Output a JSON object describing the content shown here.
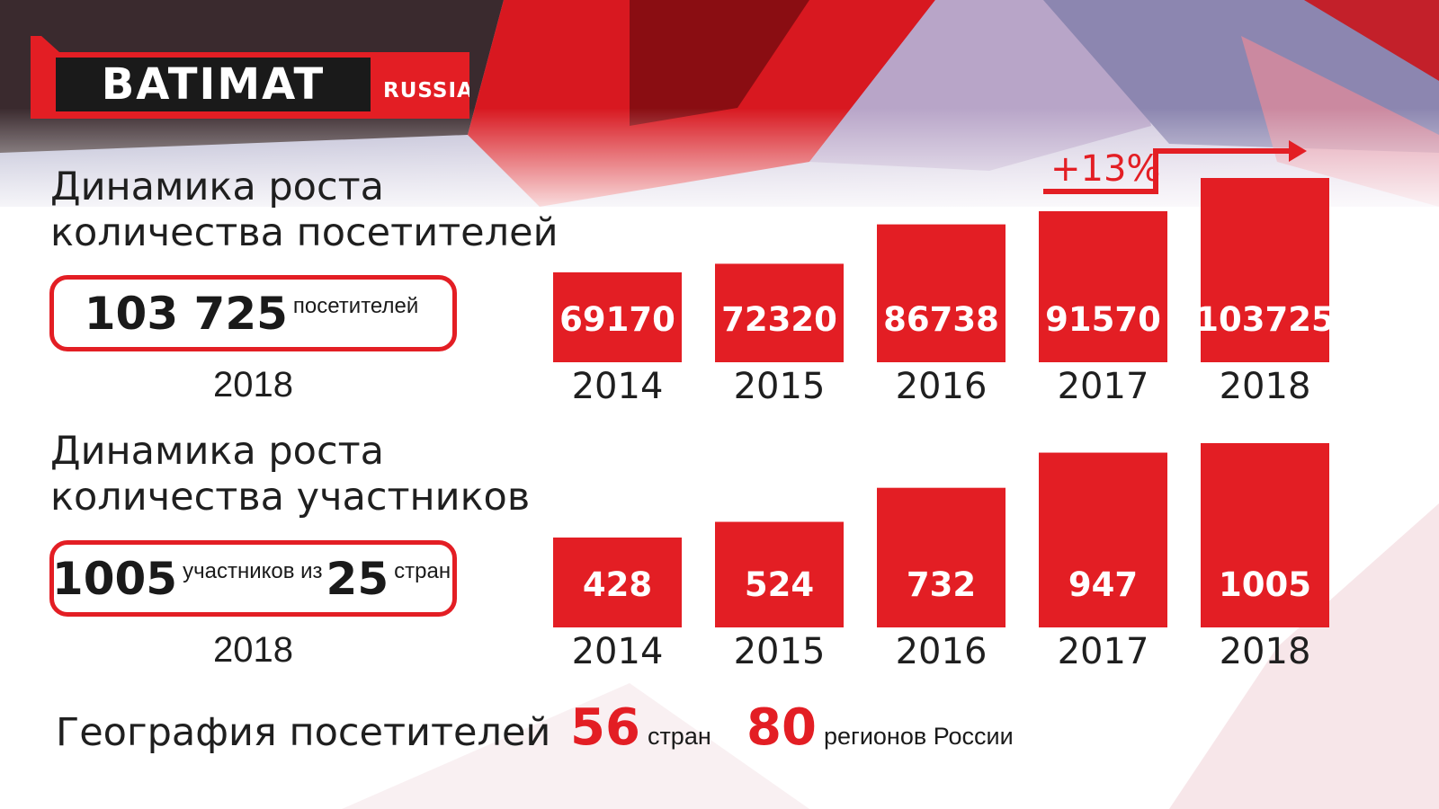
{
  "logo": {
    "main": "BATIMAT",
    "sub": "RUSSIA"
  },
  "visitors": {
    "heading": [
      "Динамика роста",
      "количества посетителей"
    ],
    "summary_number": "103 725",
    "summary_text": "посетителей",
    "summary_year": "2018",
    "growth": "+13%"
  },
  "participants": {
    "heading": [
      "Динамика роста",
      "количества участников"
    ],
    "summary_number": "1005",
    "summary_text_1": "участников из",
    "summary_number_2": "25",
    "summary_text_2": "стран",
    "summary_year": "2018"
  },
  "geography": {
    "title": "География посетителей",
    "countries_num": "56",
    "countries_text": "стран",
    "regions_num": "80",
    "regions_text": "регионов России"
  },
  "colors": {
    "accent": "#e31e24",
    "text": "#1f1f1f"
  },
  "chart_data": [
    {
      "type": "bar",
      "categories": [
        "2014",
        "2015",
        "2016",
        "2017",
        "2018"
      ],
      "values": [
        69170,
        72320,
        86738,
        91570,
        103725
      ],
      "baseline": 0
    },
    {
      "type": "bar",
      "categories": [
        "2014",
        "2015",
        "2016",
        "2017",
        "2018"
      ],
      "values": [
        428,
        524,
        732,
        947,
        1005
      ],
      "baseline": 0
    }
  ]
}
